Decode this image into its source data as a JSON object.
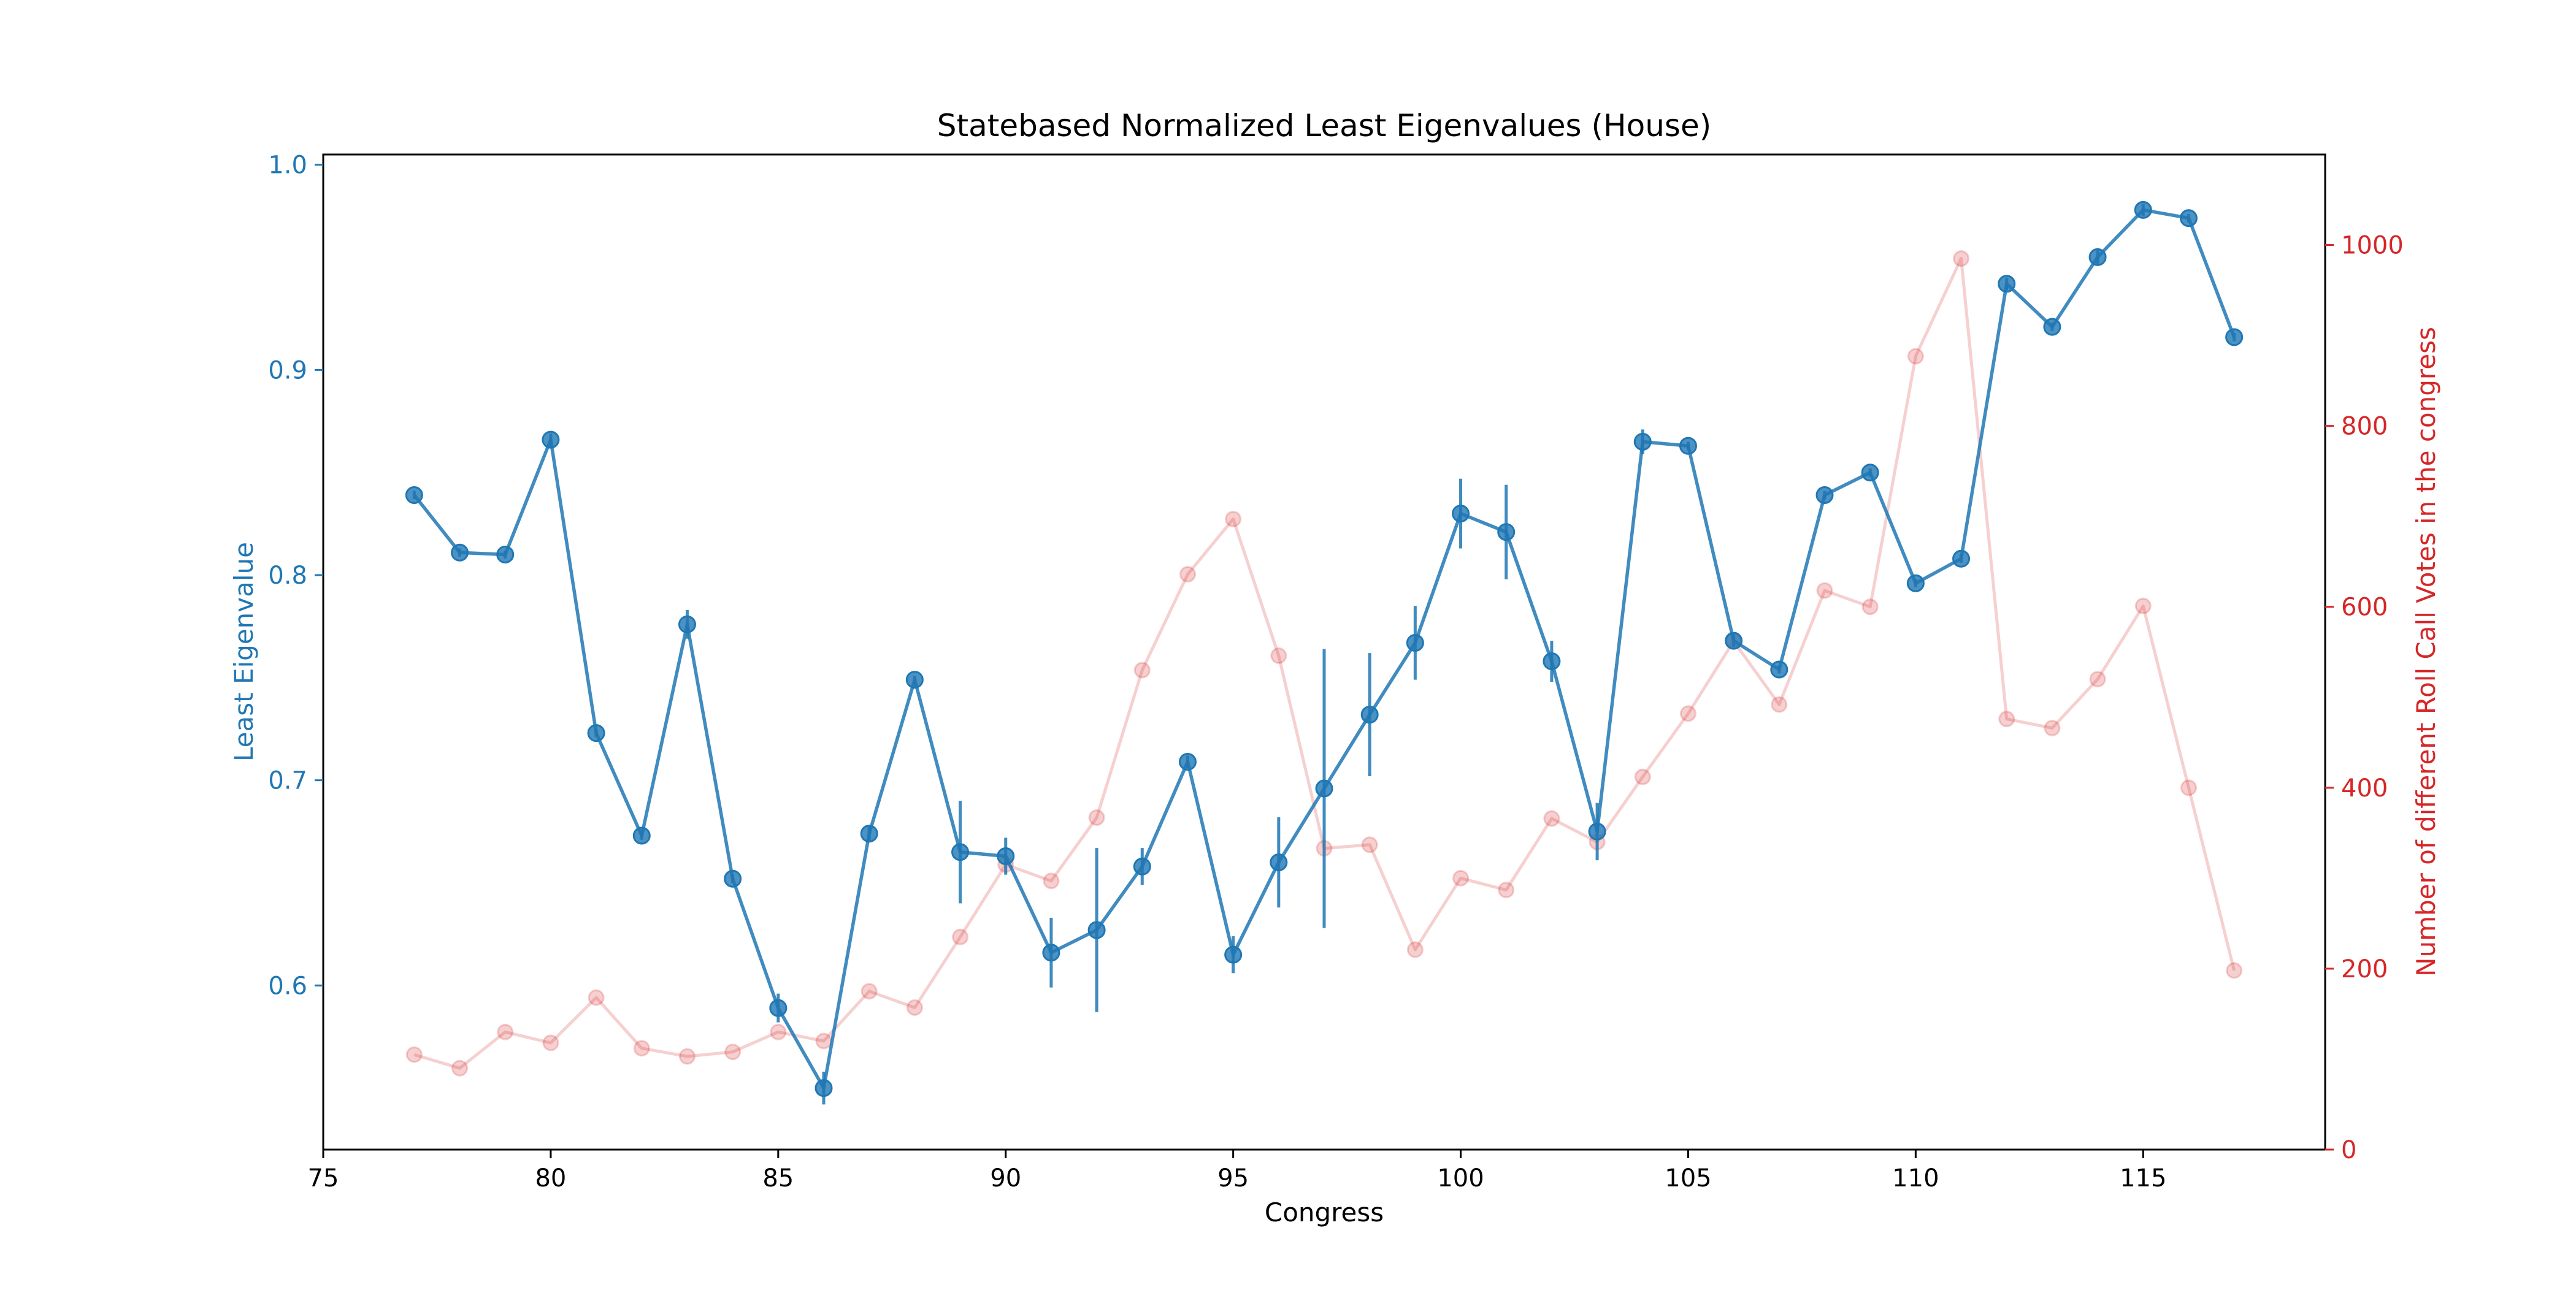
{
  "chart_data": {
    "type": "line",
    "title": "Statebased Normalized Least Eigenvalues (House)",
    "xlabel": "Congress",
    "ylabel": "Least Eigenvalue",
    "ylabel_right": "Number of different Roll Call Votes in the congress",
    "xlim": [
      75,
      119
    ],
    "ylim": [
      0.52,
      1.005
    ],
    "ylim_right": [
      0,
      1100
    ],
    "xticks": [
      75,
      80,
      85,
      90,
      95,
      100,
      105,
      110,
      115
    ],
    "yticks": [
      "0.6",
      "0.7",
      "0.8",
      "0.9",
      "1.0"
    ],
    "yticks_right": [
      0,
      200,
      400,
      600,
      800,
      1000
    ],
    "x": [
      77,
      78,
      79,
      80,
      81,
      82,
      83,
      84,
      85,
      86,
      87,
      88,
      89,
      90,
      91,
      92,
      93,
      94,
      95,
      96,
      97,
      98,
      99,
      100,
      101,
      102,
      103,
      104,
      105,
      106,
      107,
      108,
      109,
      110,
      111,
      112,
      113,
      114,
      115,
      116,
      117
    ],
    "series": [
      {
        "axis": "left",
        "color": "#1f77b4",
        "values": [
          0.839,
          0.811,
          0.81,
          0.866,
          0.723,
          0.673,
          0.776,
          0.652,
          0.589,
          0.55,
          0.674,
          0.749,
          0.665,
          0.663,
          0.616,
          0.627,
          0.658,
          0.709,
          0.615,
          0.66,
          0.696,
          0.732,
          0.767,
          0.83,
          0.821,
          0.758,
          0.675,
          0.865,
          0.863,
          0.768,
          0.754,
          0.839,
          0.85,
          0.796,
          0.808,
          0.942,
          0.921,
          0.955,
          0.978,
          0.974,
          0.916
        ],
        "errors": [
          0.002,
          0.002,
          0.002,
          0.003,
          0.002,
          0.002,
          0.007,
          0.002,
          0.007,
          0.008,
          0.004,
          0.002,
          0.025,
          0.009,
          0.017,
          0.04,
          0.009,
          0.003,
          0.009,
          0.022,
          0.068,
          0.03,
          0.018,
          0.017,
          0.023,
          0.01,
          0.014,
          0.006,
          0.002,
          0.003,
          0.002,
          0.002,
          0.002,
          0.002,
          0.002,
          0.003,
          0.002,
          0.004,
          0.003,
          0.002,
          0.002
        ]
      },
      {
        "axis": "right",
        "color": "#d62728",
        "values": [
          105,
          90,
          130,
          118,
          168,
          112,
          103,
          108,
          130,
          120,
          175,
          157,
          235,
          315,
          297,
          367,
          530,
          636,
          697,
          546,
          333,
          337,
          221,
          300,
          287,
          366,
          340,
          412,
          482,
          562,
          492,
          618,
          600,
          877,
          985,
          476,
          466,
          520,
          601,
          400,
          198
        ]
      }
    ]
  }
}
